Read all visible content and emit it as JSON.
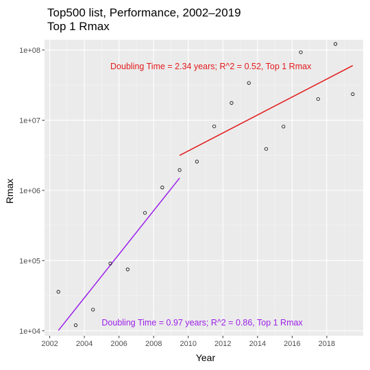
{
  "chart_data": {
    "type": "scatter",
    "title": "Top500 list, Performance, 2002–2019",
    "subtitle": "Top 1 Rmax",
    "xlabel": "Year",
    "ylabel": "Rmax",
    "x_scale": "linear",
    "y_scale": "log10",
    "xlim": [
      2001.7,
      2020.1
    ],
    "ylim": [
      8500,
      140000000
    ],
    "x_ticks": [
      2002,
      2004,
      2006,
      2008,
      2010,
      2012,
      2014,
      2016,
      2018
    ],
    "x_tick_labels": [
      "2002",
      "2004",
      "2006",
      "2008",
      "2010",
      "2012",
      "2014",
      "2016",
      "2018"
    ],
    "y_ticks": [
      10000,
      100000,
      1000000,
      10000000,
      100000000
    ],
    "y_tick_labels": [
      "1e+04",
      "1e+05",
      "1e+06",
      "1e+07",
      "1e+08"
    ],
    "grid": true,
    "background_color": "#ebebeb",
    "points": [
      {
        "x": 2002.5,
        "y": 35900
      },
      {
        "x": 2003.5,
        "y": 12000
      },
      {
        "x": 2004.5,
        "y": 20000
      },
      {
        "x": 2005.5,
        "y": 91000
      },
      {
        "x": 2006.5,
        "y": 75000
      },
      {
        "x": 2007.5,
        "y": 478000
      },
      {
        "x": 2008.5,
        "y": 1100000
      },
      {
        "x": 2009.5,
        "y": 1950000
      },
      {
        "x": 2010.5,
        "y": 2570000
      },
      {
        "x": 2011.5,
        "y": 8160000
      },
      {
        "x": 2012.5,
        "y": 17600000
      },
      {
        "x": 2013.5,
        "y": 33900000
      },
      {
        "x": 2014.5,
        "y": 3900000
      },
      {
        "x": 2015.5,
        "y": 8100000
      },
      {
        "x": 2016.5,
        "y": 93000000
      },
      {
        "x": 2017.5,
        "y": 20000000
      },
      {
        "x": 2018.5,
        "y": 122000000
      },
      {
        "x": 2019.5,
        "y": 23500000
      }
    ],
    "point_color": "#000000",
    "fit_lines": [
      {
        "color": "#9b1fe8",
        "x": [
          2002.5,
          2009.5
        ],
        "y": [
          10100,
          1500000
        ],
        "label": "Doubling Time = 0.97 years; R^2 = 0.86, Top 1 Rmax",
        "label_x": 2005.0,
        "label_y": 13000
      },
      {
        "color": "#e31a1c",
        "x": [
          2009.5,
          2019.5
        ],
        "y": [
          3150000,
          60000000
        ],
        "label": "Doubling Time = 2.34 years; R^2 = 0.52, Top 1 Rmax",
        "label_x": 2005.5,
        "label_y": 58000000
      }
    ]
  }
}
